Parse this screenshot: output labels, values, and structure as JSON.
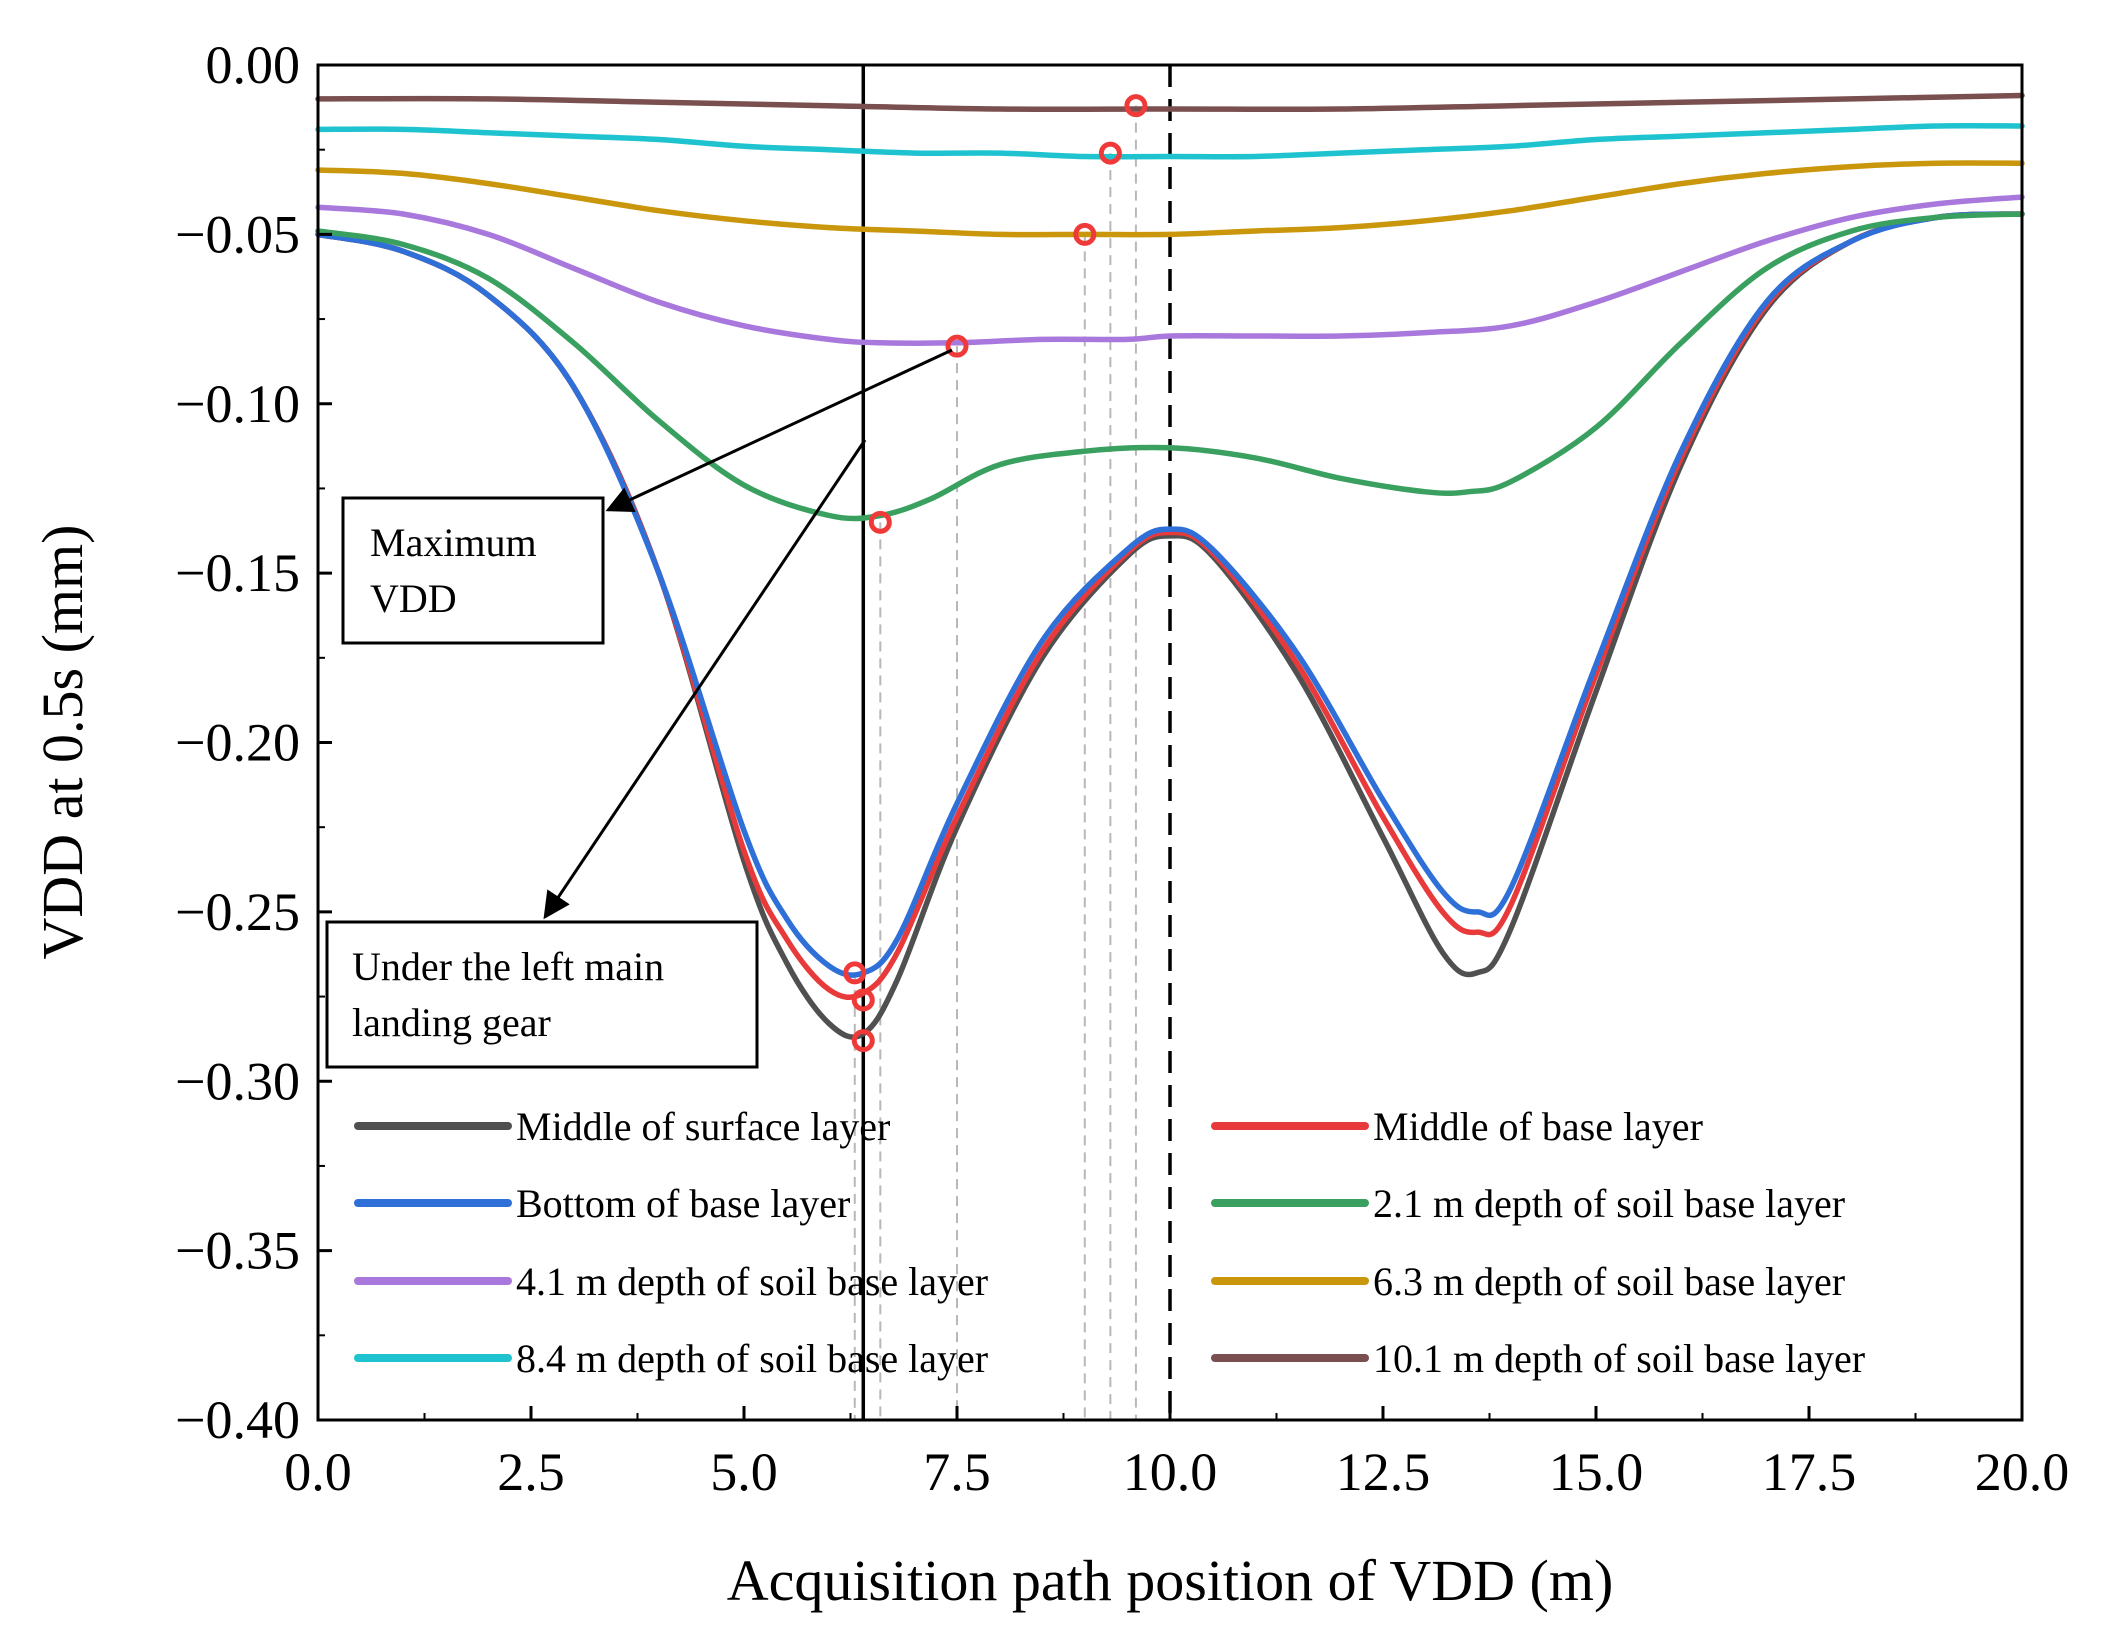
{
  "chart_data": {
    "type": "line",
    "title": "",
    "xlabel": "Acquisition path position of VDD (m)",
    "ylabel": "VDD at 0.5s (mm)",
    "xlim": [
      0,
      20
    ],
    "ylim": [
      -0.4,
      0.0
    ],
    "xticks": [
      "0.0",
      "2.5",
      "5.0",
      "7.5",
      "10.0",
      "12.5",
      "15.0",
      "17.5",
      "20.0"
    ],
    "yticks": [
      "0.00",
      "−0.05",
      "−0.10",
      "−0.15",
      "−0.20",
      "−0.25",
      "−0.30",
      "−0.35",
      "−0.40"
    ],
    "grid": false,
    "legend_position": "bottom (inside plot, two columns)",
    "series": [
      {
        "name": "Middle of surface  layer",
        "color": "#505050",
        "x": [
          0,
          1,
          2,
          3,
          4,
          5,
          5.5,
          6,
          6.4,
          6.8,
          7.5,
          8.5,
          9.5,
          10,
          10.5,
          11.5,
          12.5,
          13.2,
          13.6,
          14,
          15,
          16,
          17,
          18,
          19,
          20
        ],
        "y": [
          -0.05,
          -0.055,
          -0.068,
          -0.095,
          -0.15,
          -0.235,
          -0.265,
          -0.283,
          -0.286,
          -0.27,
          -0.225,
          -0.175,
          -0.145,
          -0.139,
          -0.145,
          -0.18,
          -0.228,
          -0.262,
          -0.268,
          -0.255,
          -0.185,
          -0.118,
          -0.072,
          -0.052,
          -0.045,
          -0.044
        ]
      },
      {
        "name": "Middle of base layer",
        "color": "#e83a3a",
        "x": [
          0,
          1,
          2,
          3,
          4,
          5,
          5.5,
          6,
          6.4,
          6.8,
          7.5,
          8.5,
          9.5,
          10,
          10.5,
          11.5,
          12.5,
          13.2,
          13.6,
          14,
          15,
          16,
          17,
          18,
          19,
          20
        ],
        "y": [
          -0.05,
          -0.055,
          -0.068,
          -0.095,
          -0.15,
          -0.232,
          -0.258,
          -0.273,
          -0.274,
          -0.262,
          -0.222,
          -0.173,
          -0.144,
          -0.138,
          -0.144,
          -0.177,
          -0.222,
          -0.25,
          -0.256,
          -0.248,
          -0.18,
          -0.116,
          -0.071,
          -0.052,
          -0.045,
          -0.044
        ]
      },
      {
        "name": "Bottom of base layer",
        "color": "#2f6fd8",
        "x": [
          0,
          1,
          2,
          3,
          4,
          5,
          5.5,
          6,
          6.4,
          6.8,
          7.5,
          8.5,
          9.5,
          10,
          10.5,
          11.5,
          12.5,
          13.2,
          13.6,
          14,
          15,
          16,
          17,
          18,
          19,
          20
        ],
        "y": [
          -0.05,
          -0.055,
          -0.068,
          -0.095,
          -0.15,
          -0.226,
          -0.252,
          -0.266,
          -0.268,
          -0.258,
          -0.218,
          -0.17,
          -0.143,
          -0.137,
          -0.143,
          -0.174,
          -0.217,
          -0.244,
          -0.25,
          -0.243,
          -0.177,
          -0.114,
          -0.07,
          -0.052,
          -0.045,
          -0.044
        ]
      },
      {
        "name": "2.1 m depth of soil base layer",
        "color": "#3aa05f",
        "x": [
          0,
          1,
          2,
          3,
          4,
          5,
          6,
          6.6,
          7.2,
          8,
          9,
          10,
          11,
          12,
          13,
          13.5,
          14,
          15,
          16,
          17,
          18,
          19,
          20
        ],
        "y": [
          -0.049,
          -0.053,
          -0.063,
          -0.082,
          -0.105,
          -0.124,
          -0.133,
          -0.133,
          -0.128,
          -0.118,
          -0.114,
          -0.113,
          -0.116,
          -0.122,
          -0.126,
          -0.126,
          -0.123,
          -0.107,
          -0.082,
          -0.06,
          -0.049,
          -0.045,
          -0.044
        ]
      },
      {
        "name": "4.1 m depth of soil base layer",
        "color": "#a878dc",
        "x": [
          0,
          1,
          2,
          3,
          4,
          5,
          6,
          6.6,
          7.5,
          8.5,
          9.5,
          10,
          11,
          12,
          13,
          14,
          15,
          16,
          17,
          18,
          19,
          20
        ],
        "y": [
          -0.042,
          -0.044,
          -0.05,
          -0.06,
          -0.07,
          -0.077,
          -0.081,
          -0.082,
          -0.082,
          -0.081,
          -0.081,
          -0.08,
          -0.08,
          -0.08,
          -0.079,
          -0.077,
          -0.07,
          -0.061,
          -0.052,
          -0.045,
          -0.041,
          -0.039
        ]
      },
      {
        "name": "6.3 m depth of soil base layer",
        "color": "#c9960c",
        "x": [
          0,
          1,
          2,
          3,
          4,
          5,
          6,
          7,
          8,
          9,
          10,
          11,
          12,
          13,
          14,
          15,
          16,
          17,
          18,
          19,
          20
        ],
        "y": [
          -0.031,
          -0.032,
          -0.035,
          -0.039,
          -0.043,
          -0.046,
          -0.048,
          -0.049,
          -0.05,
          -0.05,
          -0.05,
          -0.049,
          -0.048,
          -0.046,
          -0.043,
          -0.039,
          -0.035,
          -0.032,
          -0.03,
          -0.029,
          -0.029
        ]
      },
      {
        "name": "8.4 m depth of soil base layer",
        "color": "#1fc3cf",
        "x": [
          0,
          1,
          2,
          3,
          4,
          5,
          6,
          7,
          8,
          9,
          10,
          11,
          12,
          13,
          14,
          15,
          16,
          17,
          18,
          19,
          20
        ],
        "y": [
          -0.019,
          -0.019,
          -0.02,
          -0.021,
          -0.022,
          -0.024,
          -0.025,
          -0.026,
          -0.026,
          -0.027,
          -0.027,
          -0.027,
          -0.026,
          -0.025,
          -0.024,
          -0.022,
          -0.021,
          -0.02,
          -0.019,
          -0.018,
          -0.018
        ]
      },
      {
        "name": "10.1 m depth of soil base layer",
        "color": "#7a4f4f",
        "x": [
          0,
          2,
          4,
          6,
          8,
          10,
          12,
          14,
          16,
          18,
          20
        ],
        "y": [
          -0.01,
          -0.01,
          -0.011,
          -0.012,
          -0.013,
          -0.013,
          -0.013,
          -0.012,
          -0.011,
          -0.01,
          -0.009
        ]
      }
    ],
    "max_markers": [
      {
        "series": "Middle of surface  layer",
        "x": 6.4,
        "y": -0.288
      },
      {
        "series": "Middle of base layer",
        "x": 6.4,
        "y": -0.276
      },
      {
        "series": "Bottom of base layer",
        "x": 6.3,
        "y": -0.268
      },
      {
        "series": "2.1 m depth of soil base layer",
        "x": 6.6,
        "y": -0.135
      },
      {
        "series": "4.1 m depth of soil base layer",
        "x": 7.5,
        "y": -0.083
      },
      {
        "series": "6.3 m depth of soil base layer",
        "x": 9.0,
        "y": -0.05
      },
      {
        "series": "8.4 m depth of soil base layer",
        "x": 9.3,
        "y": -0.026
      },
      {
        "series": "10.1 m depth of soil base layer",
        "x": 9.6,
        "y": -0.012
      }
    ],
    "reference_lines": [
      {
        "style": "solid",
        "x": 6.4
      },
      {
        "style": "dashed",
        "x": 10.0
      }
    ],
    "annotations": {
      "max_vdd_line1": "Maximum",
      "max_vdd_line2": "VDD",
      "gear_line1": "Under the left main",
      "gear_line2": "landing gear"
    },
    "marker_color": "#f03a3a"
  }
}
